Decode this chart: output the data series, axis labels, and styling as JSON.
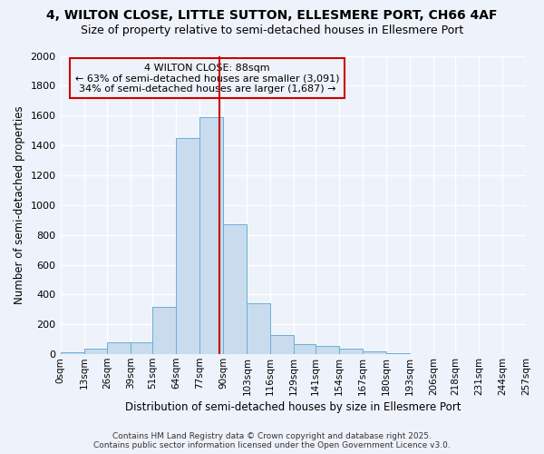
{
  "title1": "4, WILTON CLOSE, LITTLE SUTTON, ELLESMERE PORT, CH66 4AF",
  "title2": "Size of property relative to semi-detached houses in Ellesmere Port",
  "xlabel": "Distribution of semi-detached houses by size in Ellesmere Port",
  "ylabel": "Number of semi-detached properties",
  "footer1": "Contains HM Land Registry data © Crown copyright and database right 2025.",
  "footer2": "Contains public sector information licensed under the Open Government Licence v3.0.",
  "bin_edges": [
    0,
    13,
    26,
    39,
    51,
    64,
    77,
    90,
    103,
    116,
    129,
    141,
    154,
    167,
    180,
    193,
    206,
    218,
    231,
    244,
    257
  ],
  "bin_heights": [
    15,
    35,
    80,
    80,
    320,
    1450,
    1590,
    870,
    340,
    130,
    65,
    55,
    40,
    20,
    5,
    0,
    0,
    0,
    0,
    0
  ],
  "bar_facecolor": "#c8dcee",
  "bar_edgecolor": "#6aaed6",
  "vline_x": 88,
  "vline_color": "#cc0000",
  "annotation_title": "4 WILTON CLOSE: 88sqm",
  "annotation_line1": "← 63% of semi-detached houses are smaller (3,091)",
  "annotation_line2": "34% of semi-detached houses are larger (1,687) →",
  "annotation_box_edgecolor": "#cc0000",
  "ylim": [
    0,
    2000
  ],
  "yticks": [
    0,
    200,
    400,
    600,
    800,
    1000,
    1200,
    1400,
    1600,
    1800,
    2000
  ],
  "background_color": "#eef2fa",
  "grid_color": "#ffffff",
  "title_fontsize": 10,
  "subtitle_fontsize": 9
}
